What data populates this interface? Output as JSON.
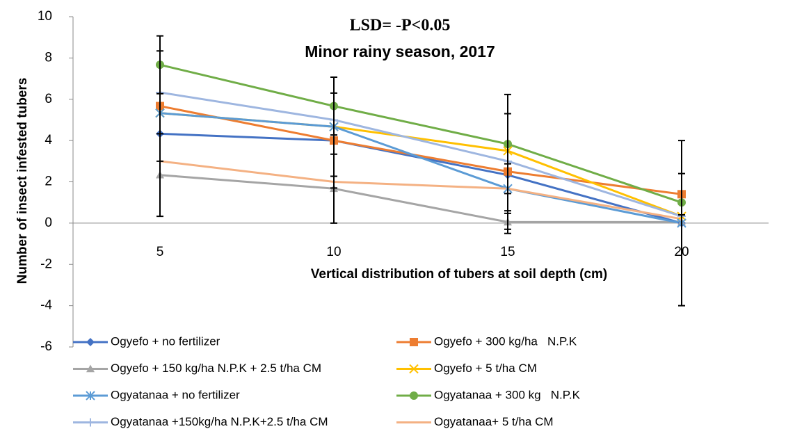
{
  "chart_data": {
    "type": "line",
    "title": "LSD= -P<0.05",
    "subtitle": "Minor rainy season, 2017",
    "x_label": "Vertical distribution of tubers at soil depth (cm)",
    "y_label": "Number of insect infested tubers",
    "categories": [
      "5",
      "10",
      "15",
      "20"
    ],
    "ylim": [
      -6,
      10
    ],
    "yticks": [
      -6,
      -4,
      -2,
      0,
      2,
      4,
      6,
      8,
      10
    ],
    "series": [
      {
        "name": "Ogyefo + no fertilizer",
        "color": "#4472c4",
        "marker": "diamond",
        "values": [
          4.33,
          4.0,
          2.33,
          0.0
        ],
        "errors": [
          null,
          null,
          null,
          4.0
        ]
      },
      {
        "name": "Ogyefo + 300 kg/ha   N.P.K",
        "color": "#ed7d31",
        "marker": "square",
        "values": [
          5.67,
          4.0,
          2.5,
          1.4
        ],
        "errors": [
          2.67,
          2.3,
          2.8,
          1.0
        ]
      },
      {
        "name": "Ogyefo + 150 kg/ha N.P.K + 2.5 t/ha CM",
        "color": "#a5a5a5",
        "marker": "triangle",
        "values": [
          2.33,
          1.67,
          0.05,
          0.05
        ],
        "errors": [
          2.0,
          1.67,
          0.55,
          null
        ]
      },
      {
        "name": "Ogyefo + 5 t/ha CM",
        "color": "#ffc000",
        "marker": "x",
        "values": [
          5.33,
          4.67,
          3.5,
          0.33
        ],
        "errors": [
          null,
          null,
          null,
          null
        ]
      },
      {
        "name": "Ogyatanaa + no fertilizer",
        "color": "#5b9bd5",
        "marker": "star",
        "values": [
          5.33,
          4.67,
          1.67,
          0.0
        ],
        "errors": [
          null,
          2.4,
          1.2,
          null
        ]
      },
      {
        "name": "Ogyatanaa + 300 kg   N.P.K",
        "color": "#70ad47",
        "marker": "circle",
        "values": [
          7.67,
          5.67,
          3.83,
          1.0
        ],
        "errors": [
          1.4,
          1.4,
          2.4,
          null
        ]
      },
      {
        "name": "Ogyatanaa +150kg/ha N.P.K+2.5 t/ha CM",
        "color": "#9eb6e0",
        "marker": "plus",
        "values": [
          6.33,
          5.0,
          3.0,
          0.33
        ],
        "errors": [
          null,
          null,
          null,
          null
        ]
      },
      {
        "name": "Ogyatanaa+ 5 t/ha CM",
        "color": "#f4b183",
        "marker": "none",
        "values": [
          3.0,
          2.0,
          1.67,
          0.2
        ],
        "errors": [
          null,
          null,
          null,
          null
        ]
      }
    ]
  }
}
